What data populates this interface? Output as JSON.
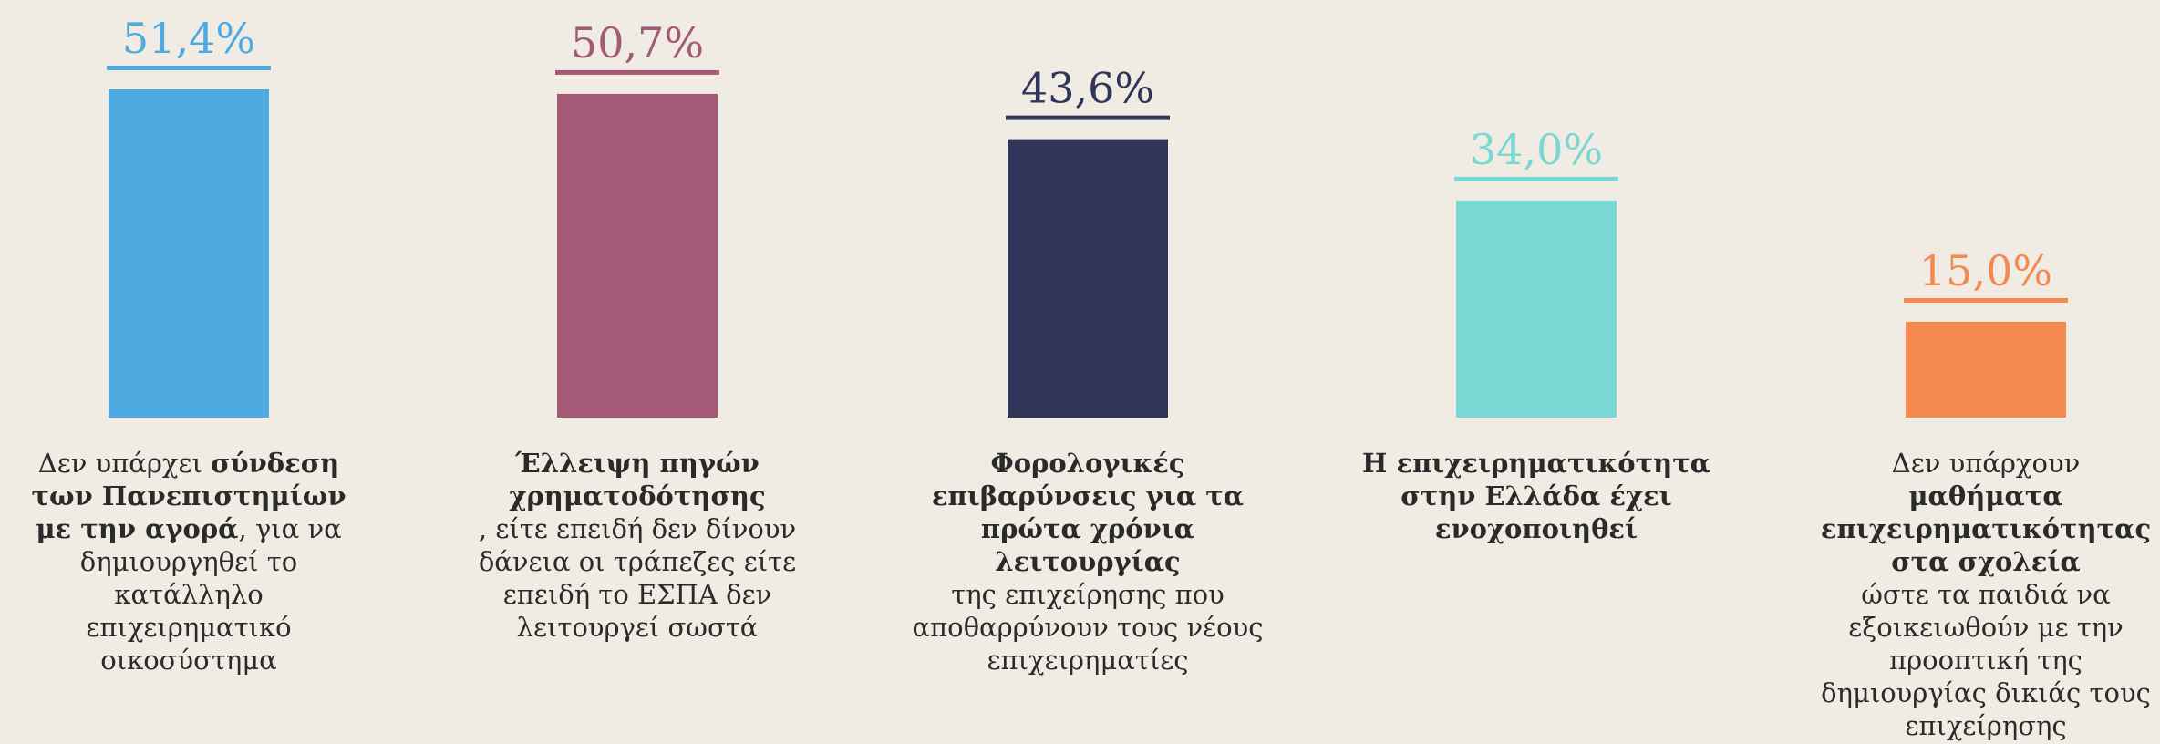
{
  "chart_data": {
    "type": "bar",
    "ylim": [
      0,
      55
    ],
    "categories": [
      "Δεν υπάρχει σύνδεση των Πανεπιστημίων με την αγορά, για να δημιουργηθεί το κατάλληλο επιχειρηματικό οικοσύστημα",
      "Έλλειψη πηγών χρηματοδότησης, είτε επειδή δεν δίνουν δάνεια οι τράπεζες είτε επειδή το ΕΣΠΑ δεν λειτουργεί σωστά",
      "Φορολογικές επιβαρύνσεις για τα πρώτα χρόνια λειτουργίας της επιχείρησης που αποθαρρύνουν τους νέους επιχειρηματίες",
      "Η επιχειρηματικότητα στην Ελλάδα έχει ενοχοποιηθεί",
      "Δεν υπάρχουν μαθήματα επιχειρηματικότητας στα σχολεία ώστε τα παιδιά να εξοικειωθούν με την προοπτική της δημιουργίας δικιάς τους επιχείρησης"
    ],
    "values": [
      51.4,
      50.7,
      43.6,
      34.0,
      15.0
    ],
    "value_labels": [
      "51,4%",
      "50,7%",
      "43,6%",
      "34,0%",
      "15,0%"
    ],
    "colors": [
      "#4eabe1",
      "#a35a76",
      "#31355a",
      "#7ad7d3",
      "#f48a52"
    ],
    "label_parts": [
      {
        "pre": "Δεν υπάρχει ",
        "bold": "σύνδεση των Πανεπιστημίων με την αγορά",
        "post": ", για να δημιουργηθεί το κατάλληλο επιχειρηματικό οικοσύστημα"
      },
      {
        "pre": "",
        "bold": "Έλλειψη πηγών χρηματοδότησης",
        "post": ", είτε επειδή δεν δίνουν δάνεια οι τράπεζες είτε επειδή το ΕΣΠΑ δεν λειτουργεί σωστά"
      },
      {
        "pre": "",
        "bold": "Φορολογικές επιβαρύνσεις για τα πρώτα χρόνια λειτουργίας",
        "post": "της επιχείρησης που αποθαρρύνουν τους νέους επιχειρηματίες"
      },
      {
        "pre": "",
        "bold": "Η επιχειρηματικότητα στην Ελλάδα έχει ενοχοποιηθεί",
        "post": ""
      },
      {
        "pre": "Δεν υπάρχουν ",
        "bold": "μαθήματα επιχειρηματικότητας στα σχολεία",
        "post": "ώστε τα παιδιά να εξοικειωθούν με την προοπτική της δημιουργίας δικιάς τους επιχείρησης"
      }
    ],
    "grid": false,
    "legend": "none"
  }
}
